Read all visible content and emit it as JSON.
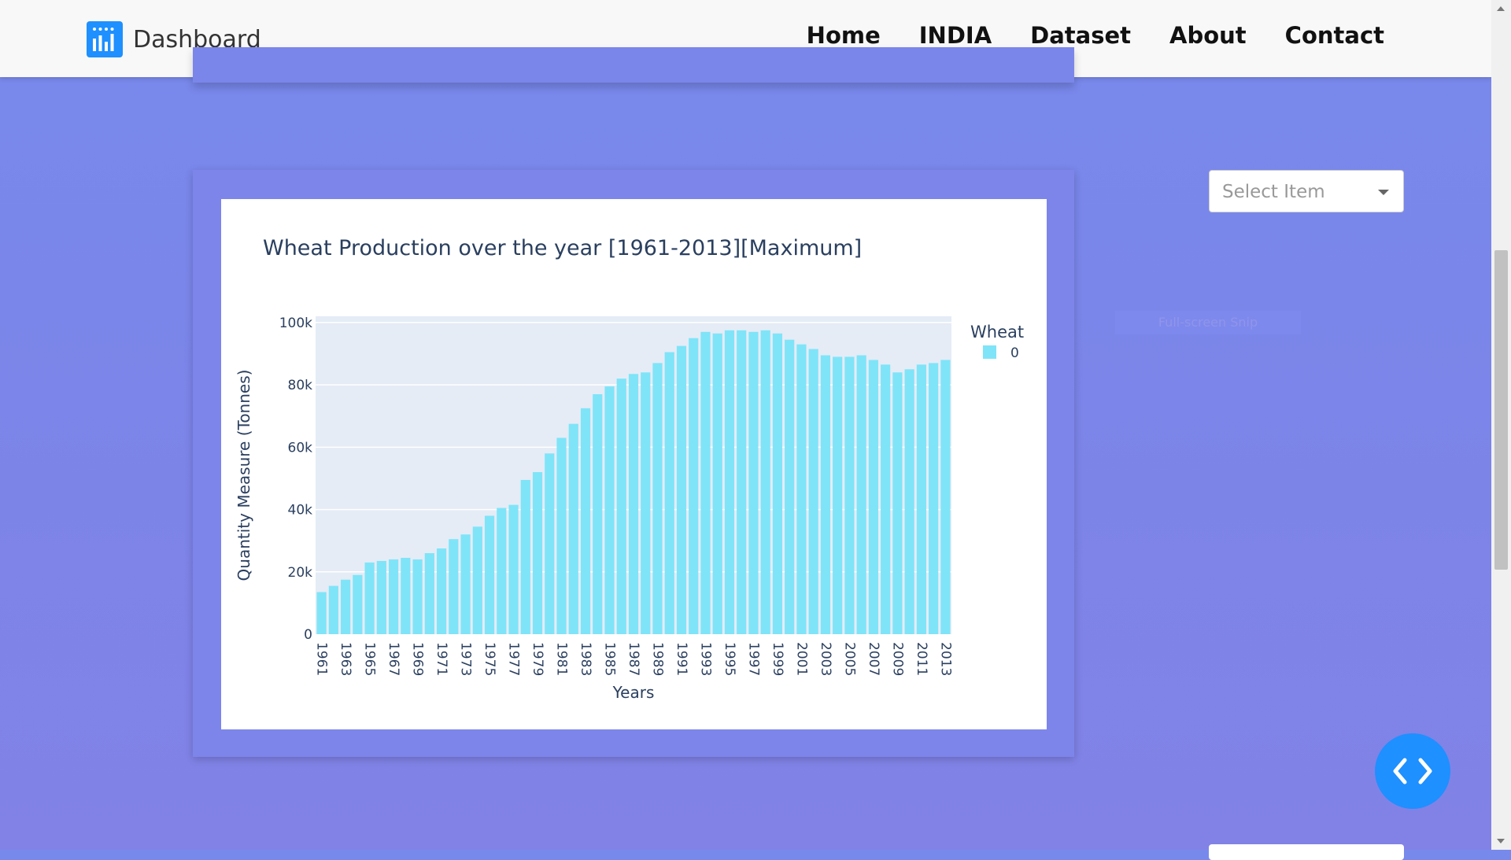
{
  "navbar": {
    "brand": "Dashboard",
    "brand_icon": "bar-chart-icon",
    "links": [
      "Home",
      "INDIA",
      "Dataset",
      "About",
      "Contact"
    ]
  },
  "select": {
    "placeholder": "Select Item"
  },
  "snip_label": "Full-screen Snip",
  "fab_icon": "code-brackets-icon",
  "chart_data": {
    "type": "bar",
    "title": "Wheat Production over the year [1961-2013][Maximum]",
    "xlabel": "Years",
    "ylabel": "Quantity Measure (Tonnes)",
    "ylim": [
      0,
      102000
    ],
    "yticks": [
      0,
      20000,
      40000,
      60000,
      80000,
      100000
    ],
    "ytick_labels": [
      "0",
      "20k",
      "40k",
      "60k",
      "80k",
      "100k"
    ],
    "legend_title": "Wheat",
    "legend_position": "top-right",
    "grid": true,
    "color": "#7fe4f8",
    "categories": [
      "1961",
      "1962",
      "1963",
      "1964",
      "1965",
      "1966",
      "1967",
      "1968",
      "1969",
      "1970",
      "1971",
      "1972",
      "1973",
      "1974",
      "1975",
      "1976",
      "1977",
      "1978",
      "1979",
      "1980",
      "1981",
      "1982",
      "1983",
      "1984",
      "1985",
      "1986",
      "1987",
      "1988",
      "1989",
      "1990",
      "1991",
      "1992",
      "1993",
      "1994",
      "1995",
      "1996",
      "1997",
      "1998",
      "1999",
      "2000",
      "2001",
      "2002",
      "2003",
      "2004",
      "2005",
      "2006",
      "2007",
      "2008",
      "2009",
      "2010",
      "2011",
      "2012",
      "2013"
    ],
    "series": [
      {
        "name": "0",
        "values": [
          13500,
          15500,
          17500,
          19000,
          23000,
          23500,
          24000,
          24500,
          24000,
          26000,
          27500,
          30500,
          32000,
          34500,
          38000,
          40500,
          41500,
          49500,
          52000,
          58000,
          63000,
          67500,
          72500,
          77000,
          79500,
          82000,
          83500,
          84000,
          87000,
          90500,
          92500,
          95000,
          97000,
          96500,
          97500,
          97500,
          97000,
          97500,
          96500,
          94500,
          93000,
          91500,
          89500,
          89000,
          89000,
          89500,
          88000,
          86500,
          84000,
          85000,
          86500,
          87000,
          88000
        ]
      }
    ]
  }
}
